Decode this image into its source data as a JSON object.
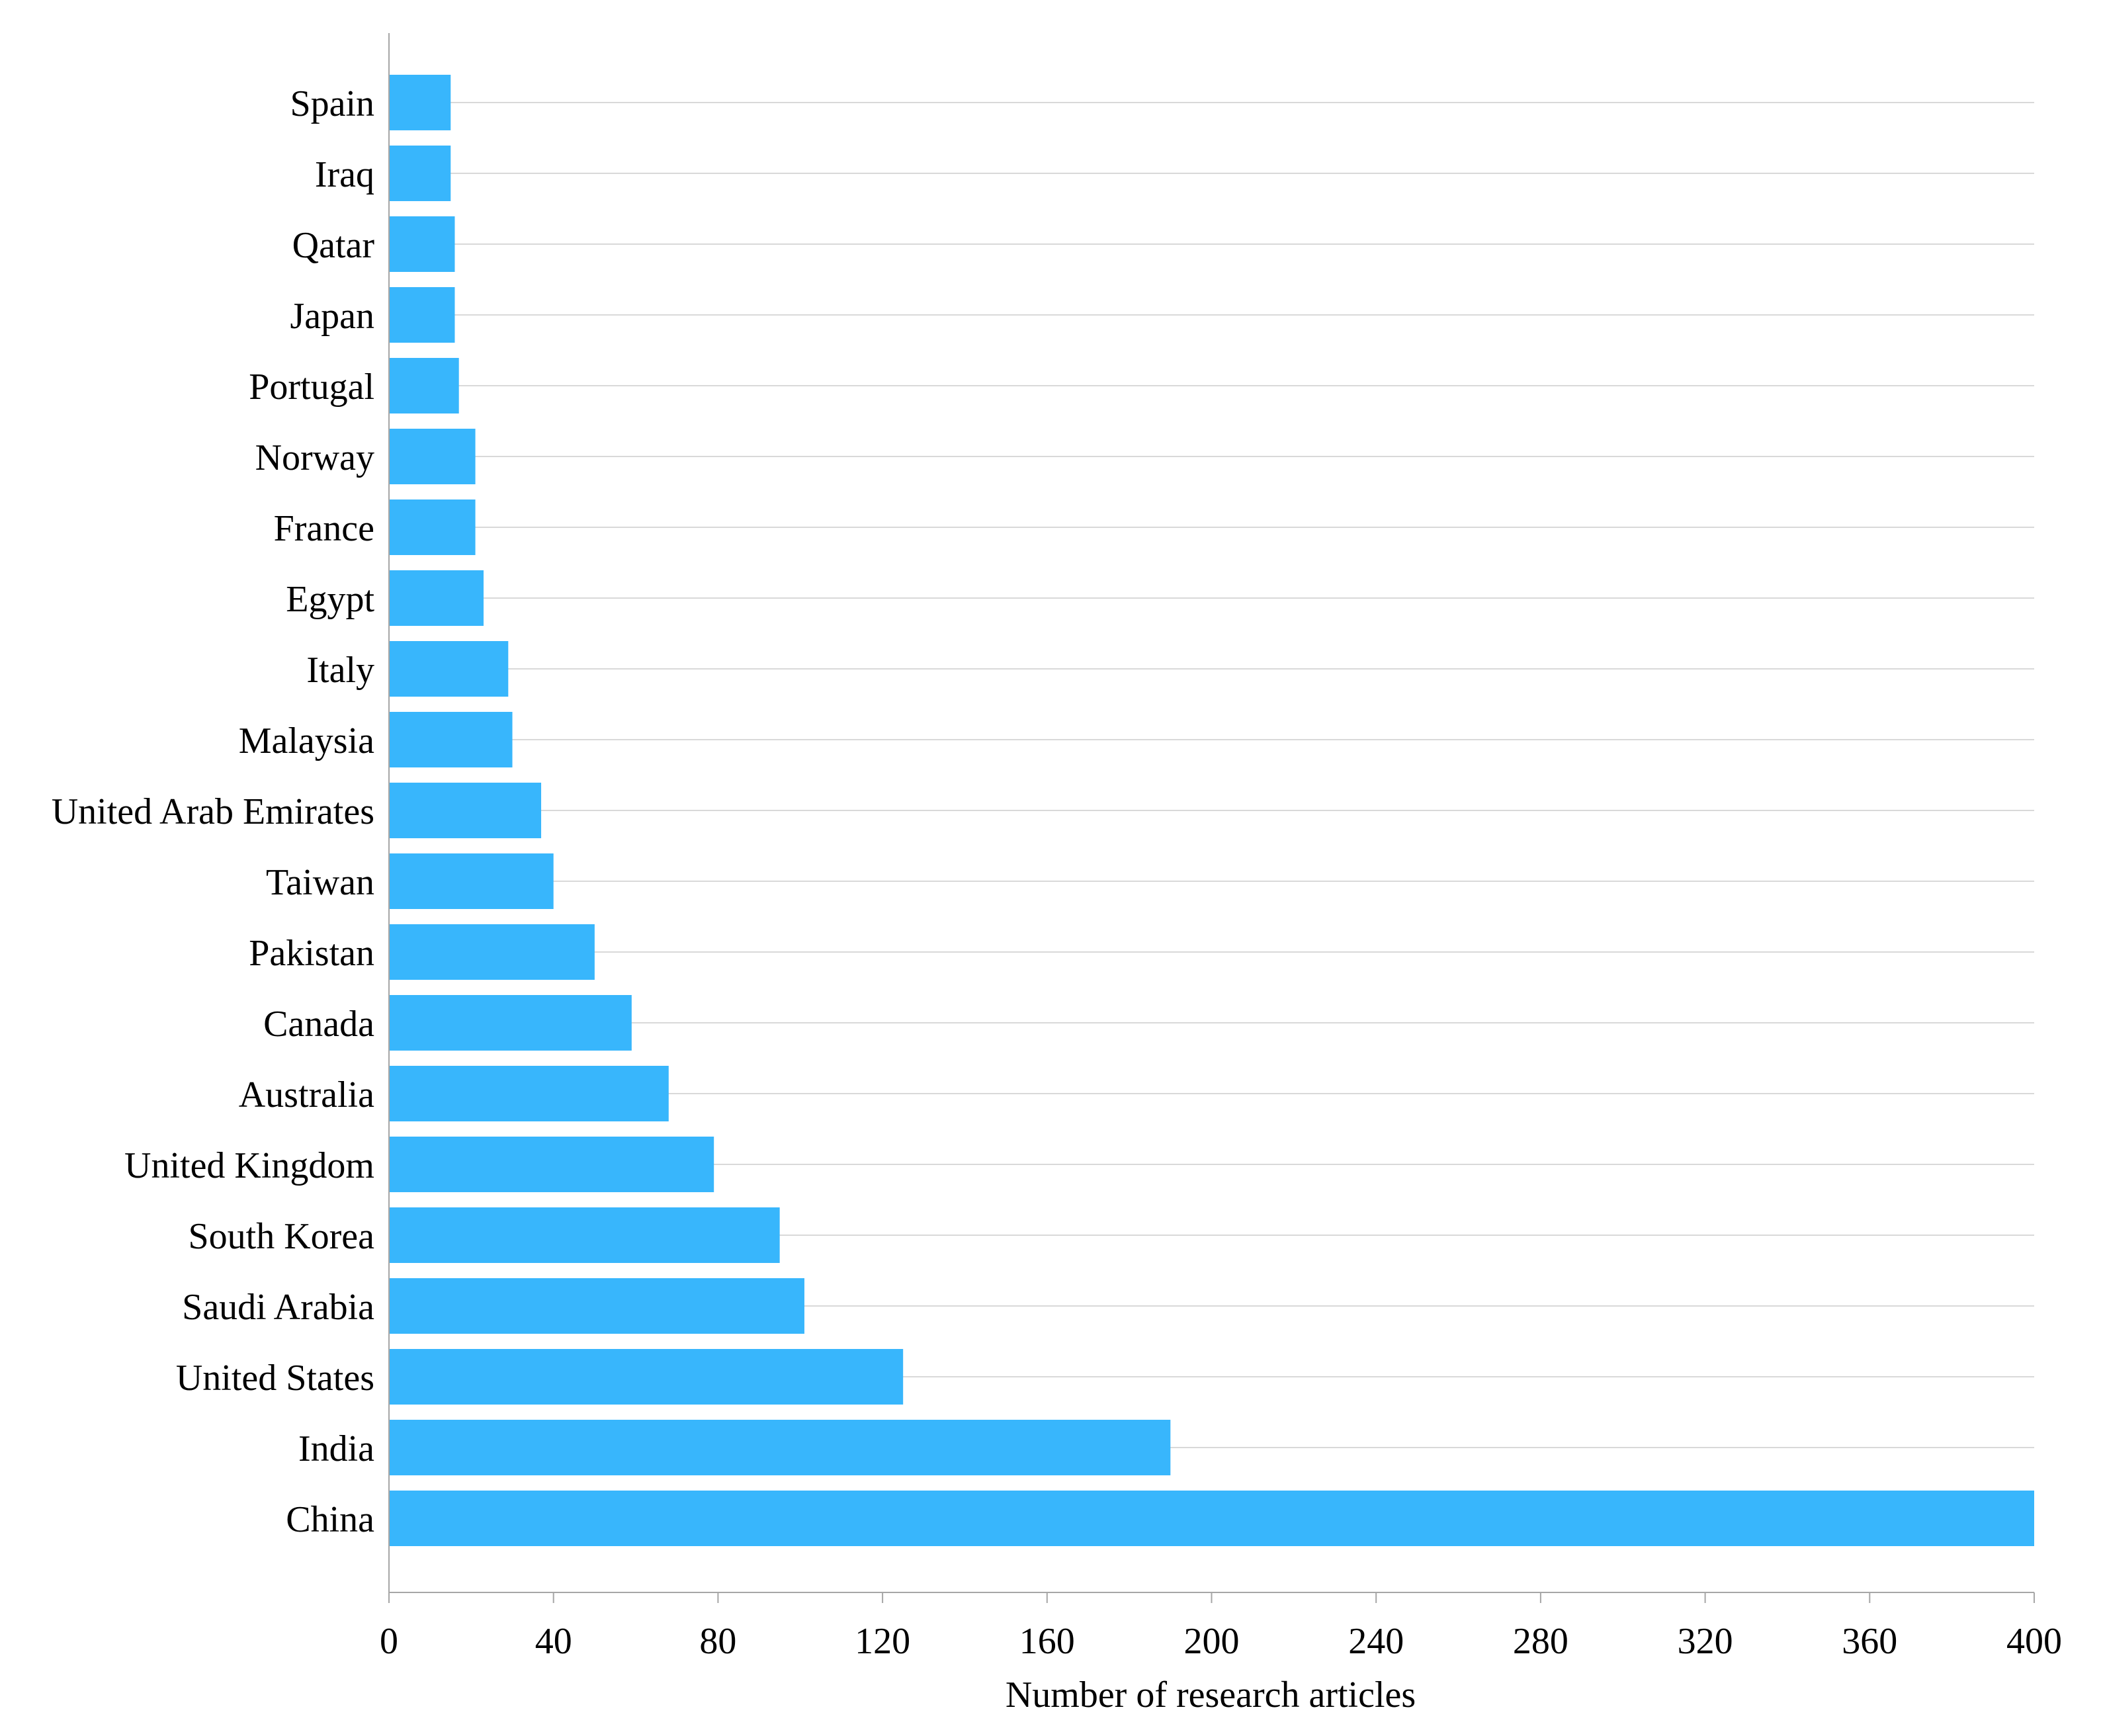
{
  "chart_data": {
    "type": "bar",
    "orientation": "horizontal",
    "title": "",
    "xlabel": "Number of research articles",
    "ylabel": "",
    "xlim": [
      0,
      400
    ],
    "xticks": [
      0,
      40,
      80,
      120,
      160,
      200,
      240,
      280,
      320,
      360,
      400
    ],
    "grid": true,
    "legend": "none",
    "bar_color": "#38b6fc",
    "categories": [
      "Spain",
      "Iraq",
      "Qatar",
      "Japan",
      "Portugal",
      "Norway",
      "France",
      "Egypt",
      "Italy",
      "Malaysia",
      "United Arab Emirates",
      "Taiwan",
      "Pakistan",
      "Canada",
      "Australia",
      "United Kingdom",
      "South Korea",
      "Saudi Arabia",
      "United States",
      "India",
      "China"
    ],
    "values": [
      15,
      15,
      16,
      16,
      17,
      21,
      21,
      23,
      29,
      30,
      37,
      40,
      50,
      59,
      68,
      79,
      95,
      101,
      125,
      190,
      400
    ]
  }
}
